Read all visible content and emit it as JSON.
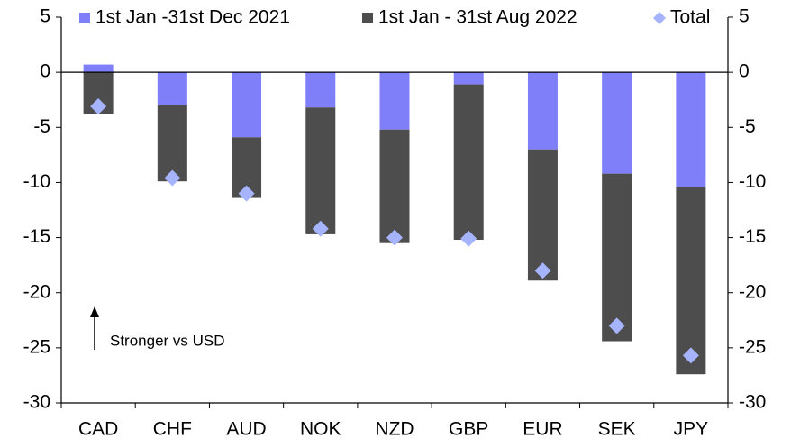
{
  "chart_data": {
    "type": "bar",
    "stacked": true,
    "categories": [
      "CAD",
      "CHF",
      "AUD",
      "NOK",
      "NZD",
      "GBP",
      "EUR",
      "SEK",
      "JPY"
    ],
    "series": [
      {
        "name": "1st Jan -31st Dec 2021",
        "color": "#7f7ffa",
        "kind": "bar",
        "values": [
          0.7,
          -3.0,
          -5.9,
          -3.2,
          -5.2,
          -1.1,
          -7.0,
          -9.2,
          -10.4
        ]
      },
      {
        "name": "1st Jan - 31st Aug 2022",
        "color": "#4d4d4d",
        "kind": "bar",
        "values": [
          -3.8,
          -6.9,
          -5.5,
          -11.5,
          -10.3,
          -14.1,
          -11.9,
          -15.2,
          -17.0
        ]
      },
      {
        "name": "Total",
        "color": "#a6b4ff",
        "kind": "diamond",
        "values": [
          -3.1,
          -9.6,
          -11.0,
          -14.2,
          -15.0,
          -15.1,
          -18.0,
          -23.0,
          -25.7
        ]
      }
    ],
    "ylim": [
      -30,
      5
    ],
    "yticks": [
      5,
      0,
      -5,
      -10,
      -15,
      -20,
      -25,
      -30
    ],
    "y2lim": [
      -30,
      5
    ],
    "y2ticks": [
      5,
      0,
      -5,
      -10,
      -15,
      -20,
      -25,
      -30
    ],
    "grid": false,
    "legend": "top",
    "annotation": "Stronger vs USD"
  }
}
